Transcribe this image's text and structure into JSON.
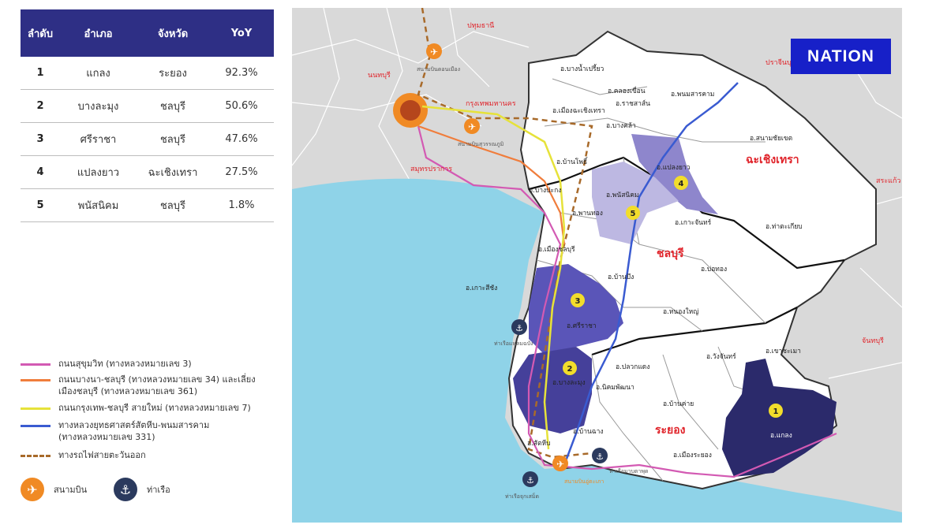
{
  "table": {
    "headers": [
      "ลำดับ",
      "อำเภอ",
      "จังหวัด",
      "YoY"
    ],
    "rows": [
      {
        "rank": "1",
        "district": "แกลง",
        "province": "ระยอง",
        "yoy": "92.3%"
      },
      {
        "rank": "2",
        "district": "บางละมุง",
        "province": "ชลบุรี",
        "yoy": "50.6%"
      },
      {
        "rank": "3",
        "district": "ศรีราชา",
        "province": "ชลบุรี",
        "yoy": "47.6%"
      },
      {
        "rank": "4",
        "district": "แปลงยาว",
        "province": "ฉะเชิงเทรา",
        "yoy": "27.5%"
      },
      {
        "rank": "5",
        "district": "พนัสนิคม",
        "province": "ชลบุรี",
        "yoy": "1.8%"
      }
    ]
  },
  "legend": {
    "sukhumvit": "ถนนสุขุมวิท (ทางหลวงหมายเลข 3)",
    "bangna": "ถนนบางนา-ชลบุรี (ทางหลวงหมายเลข 34) และเลี่ยงเมืองชลบุรี (ทางหลวงหมายเลข 361)",
    "krungthep": "ถนนกรุงเทพ-ชลบุรี สายใหม่ (ทางหลวงหมายเลข 7)",
    "strategic": "ทางหลวงยุทธศาสตร์สัตหีบ-พนมสารคาม (ทางหลวงหมายเลข 331)",
    "railway": "ทางรถไฟสายตะวันออก",
    "airport": "สนามบิน",
    "port": "ท่าเรือ"
  },
  "brand": "NATION",
  "colors": {
    "header_bg": "#2e2f85",
    "sea": "#8fd3e8",
    "land_outside": "#d9d9d9",
    "land_region": "#ffffff",
    "rank_dark": "#2b2a6b",
    "rank_mid": "#5a55b8",
    "rank_light": "#8e86cc",
    "rank_pale": "#bdb8e2",
    "sukhumvit": "#d35ab3",
    "bangna": "#f07d3c",
    "krungthep": "#e6e23a",
    "strategic": "#3a5bd1",
    "railway": "#a86a2a",
    "airport": "#f08a24",
    "port": "#2b3a5e",
    "province_label": "#e0232a",
    "marker": "#f2dd2b",
    "logo_bg": "#1720c8"
  },
  "map": {
    "provinces": {
      "chachoengsao": "ฉะเชิงเทรา",
      "chonburi": "ชลบุรี",
      "rayong": "ระยอง"
    },
    "neighbors": {
      "pathum": "ปทุมธานี",
      "nonthaburi": "นนทบุรี",
      "prachin": "ปราจีนบุรี",
      "sakaeo": "สระแก้ว",
      "chanthaburi": "จันทบุรี",
      "samutprakan": "สมุทรปราการ",
      "bangkok": "กรุงเทพมหานคร"
    },
    "districts": {
      "bangnamprieo": "อ.บางน้ำเปรี้ยว",
      "khlongkhuean": "อ.คลองเขื่อน",
      "phanomsarakham": "อ.พนมสารคาม",
      "ratchasan": "อ.ราชสาส์น",
      "mueangchachoengsao": "อ.เมืองฉะเชิงเทรา",
      "bangkhla": "อ.บางคล้า",
      "sanamchaikhet": "อ.สนามชัยเขต",
      "plaengyao": "อ.แปลงยาว",
      "banpho": "อ.บ้านโพธิ์",
      "bangpakong": "อ.บางปะกง",
      "phanatnikhom": "อ.พนัสนิคม",
      "phanthong": "อ.พานทอง",
      "kokaset": "อ.เกาะจันทร์",
      "thatakiap": "อ.ท่าตะเกียบ",
      "mueangchonburi": "อ.เมืองชลบุรี",
      "banbueng": "อ.บ้านบึง",
      "bothong": "อ.บ่อทอง",
      "kosichang": "อ.เกาะสีชัง",
      "sriracha": "อ.ศรีราชา",
      "nongyai": "อ.หนองใหญ่",
      "khaochamao": "อ.เขาชะเมา",
      "wangchan": "อ.วังจันทร์",
      "pluakdaeng": "อ.ปลวกแดง",
      "nikhompattana": "อ.นิคมพัฒนา",
      "bankhai": "อ.บ้านค่าย",
      "banglamung": "อ.บางละมุง",
      "banchang": "อ.บ้านฉาง",
      "sattahip": "อ.สัตหีบ",
      "mueangrayong": "อ.เมืองระยอง",
      "klaeng": "อ.แกลง"
    },
    "landmarks": {
      "donmueang": "สนามบินดอนเมือง",
      "suvarnabhumi": "สนามบินสุวรรณภูมิ",
      "laemchabang": "ท่าเรือแหลมฉบัง",
      "sattahipport": "ท่าเรือจุกเสม็ด",
      "utapao": "สนามบินอู่ตะเภา",
      "maptaphut": "ท่าเรือมาบตาพุด"
    },
    "markers": [
      "1",
      "2",
      "3",
      "4",
      "5"
    ]
  }
}
